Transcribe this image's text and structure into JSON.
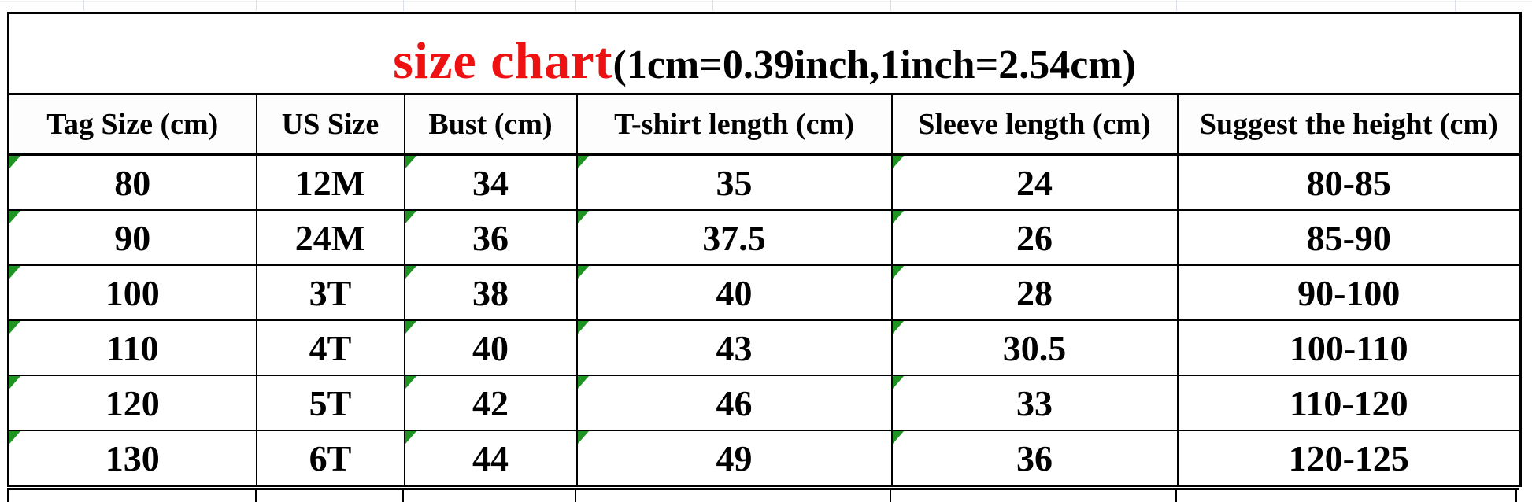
{
  "title": {
    "main": "size chart",
    "note": "(1cm=0.39inch,1inch=2.54cm)"
  },
  "table": {
    "columns": [
      {
        "key": "tag",
        "label": "Tag Size (cm)"
      },
      {
        "key": "us",
        "label": "US Size"
      },
      {
        "key": "bust",
        "label": "Bust (cm)"
      },
      {
        "key": "tshirt",
        "label": "T-shirt length (cm)"
      },
      {
        "key": "sleeve",
        "label": "Sleeve length (cm)"
      },
      {
        "key": "height",
        "label": "Suggest the height (cm)"
      }
    ],
    "rows": [
      {
        "tag": "80",
        "us": "12M",
        "bust": "34",
        "tshirt": "35",
        "sleeve": "24",
        "height": "80-85"
      },
      {
        "tag": "90",
        "us": "24M",
        "bust": "36",
        "tshirt": "37.5",
        "sleeve": "26",
        "height": "85-90"
      },
      {
        "tag": "100",
        "us": "3T",
        "bust": "38",
        "tshirt": "40",
        "sleeve": "28",
        "height": "90-100"
      },
      {
        "tag": "110",
        "us": "4T",
        "bust": "40",
        "tshirt": "43",
        "sleeve": "30.5",
        "height": "100-110"
      },
      {
        "tag": "120",
        "us": "5T",
        "bust": "42",
        "tshirt": "46",
        "sleeve": "33",
        "height": "110-120"
      },
      {
        "tag": "130",
        "us": "6T",
        "bust": "44",
        "tshirt": "49",
        "sleeve": "36",
        "height": "120-125"
      }
    ],
    "error_flag_columns": [
      "tag",
      "bust",
      "tshirt",
      "sleeve"
    ]
  },
  "colors": {
    "title_accent": "#ee1111",
    "error_triangle": "#1f9422",
    "border": "#000000",
    "gridline": "#d9e0ea"
  }
}
